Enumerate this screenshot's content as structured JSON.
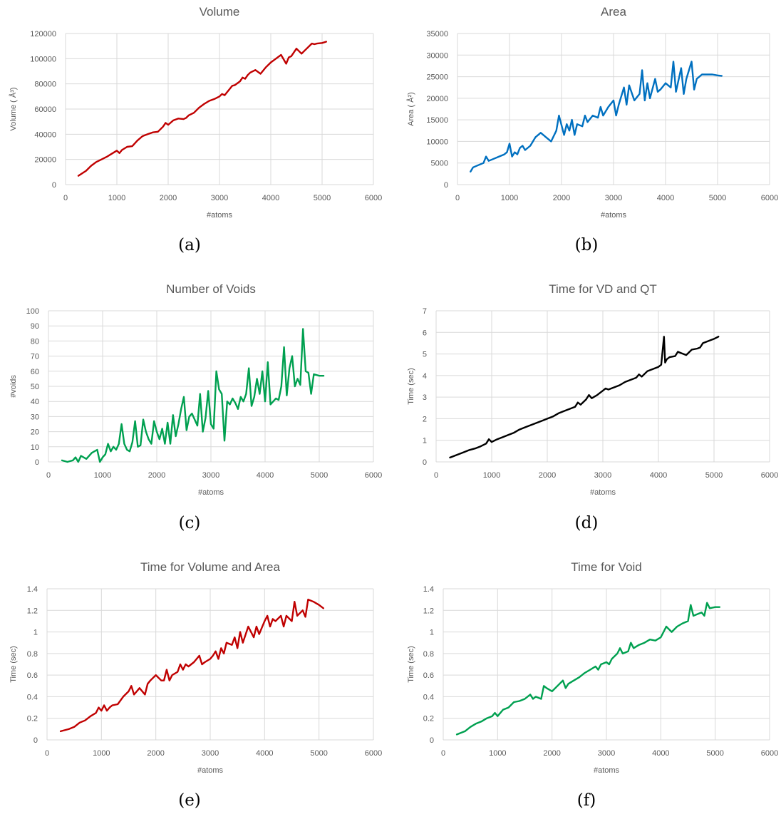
{
  "chart_data": [
    {
      "type": "line",
      "title": "Volume",
      "xlabel": "#atoms",
      "ylabel": "Volume ( Å³)",
      "caption": "(a)",
      "xlim": [
        0,
        6000
      ],
      "ylim": [
        0,
        120000
      ],
      "xticks": [
        "0",
        "1000",
        "2000",
        "3000",
        "4000",
        "5000",
        "6000"
      ],
      "yticks": [
        "0",
        "20000",
        "40000",
        "60000",
        "80000",
        "100000",
        "120000"
      ],
      "grid": true,
      "color": "#c00000",
      "series": [
        {
          "x": [
            250,
            400,
            500,
            600,
            700,
            800,
            900,
            1000,
            1050,
            1100,
            1200,
            1300,
            1400,
            1500,
            1600,
            1700,
            1800,
            1900,
            1950,
            2000,
            2100,
            2200,
            2300,
            2350,
            2400,
            2500,
            2550,
            2600,
            2700,
            2800,
            2900,
            3000,
            3050,
            3100,
            3200,
            3250,
            3300,
            3400,
            3450,
            3500,
            3550,
            3600,
            3700,
            3800,
            3900,
            4000,
            4100,
            4200,
            4300,
            4350,
            4400,
            4500,
            4600,
            4650,
            4700,
            4800,
            4850,
            4900,
            5000,
            5080
          ],
          "y": [
            7000,
            11000,
            15000,
            18000,
            20000,
            22000,
            24500,
            27000,
            25000,
            27500,
            30000,
            30500,
            35000,
            38500,
            40000,
            41500,
            42000,
            46000,
            49000,
            47500,
            51000,
            52500,
            52000,
            53000,
            55000,
            57000,
            59000,
            61000,
            64000,
            66500,
            68000,
            70000,
            72000,
            71000,
            76000,
            78500,
            79000,
            82000,
            85000,
            84000,
            87000,
            89000,
            91000,
            88000,
            93000,
            97000,
            100000,
            103000,
            96000,
            101000,
            102000,
            108000,
            104000,
            106000,
            108000,
            112000,
            111500,
            112000,
            112500,
            113500
          ]
        }
      ]
    },
    {
      "type": "line",
      "title": "Area",
      "xlabel": "#atoms",
      "ylabel": "Area ( Å²)",
      "caption": "(b)",
      "xlim": [
        0,
        6000
      ],
      "ylim": [
        0,
        35000
      ],
      "xticks": [
        "0",
        "1000",
        "2000",
        "3000",
        "4000",
        "5000",
        "6000"
      ],
      "yticks": [
        "0",
        "5000",
        "10000",
        "15000",
        "20000",
        "25000",
        "30000",
        "35000"
      ],
      "grid": true,
      "color": "#0070c0",
      "series": [
        {
          "x": [
            250,
            300,
            400,
            500,
            550,
            600,
            700,
            800,
            900,
            950,
            1000,
            1050,
            1100,
            1150,
            1200,
            1250,
            1300,
            1400,
            1500,
            1600,
            1700,
            1800,
            1900,
            1950,
            2050,
            2100,
            2150,
            2200,
            2250,
            2300,
            2400,
            2450,
            2500,
            2600,
            2700,
            2750,
            2800,
            2900,
            3000,
            3050,
            3100,
            3200,
            3250,
            3300,
            3400,
            3500,
            3550,
            3600,
            3650,
            3700,
            3800,
            3850,
            3900,
            4000,
            4100,
            4150,
            4200,
            4300,
            4350,
            4400,
            4500,
            4550,
            4600,
            4700,
            4800,
            4900,
            5000,
            5080
          ],
          "y": [
            3000,
            4000,
            4500,
            5000,
            6500,
            5500,
            6000,
            6500,
            7000,
            7500,
            9500,
            6500,
            7500,
            7000,
            8500,
            9000,
            8000,
            9000,
            11000,
            12000,
            11000,
            10000,
            12500,
            16000,
            11500,
            14000,
            12500,
            15000,
            11500,
            14000,
            13500,
            16000,
            14500,
            16000,
            15500,
            18000,
            16000,
            18000,
            19500,
            16000,
            18500,
            22500,
            18500,
            23000,
            19500,
            21000,
            26500,
            19500,
            23500,
            20000,
            24500,
            21500,
            22000,
            23500,
            22500,
            28500,
            21500,
            27000,
            21000,
            24500,
            28500,
            22000,
            24500,
            25500,
            25500,
            25500,
            25300,
            25200
          ]
        }
      ]
    },
    {
      "type": "line",
      "title": "Number of Voids",
      "xlabel": "#atoms",
      "ylabel": "#voids",
      "caption": "(c)",
      "xlim": [
        0,
        6000
      ],
      "ylim": [
        0,
        100
      ],
      "xticks": [
        "0",
        "1000",
        "2000",
        "3000",
        "4000",
        "5000",
        "6000"
      ],
      "yticks": [
        "0",
        "10",
        "20",
        "30",
        "40",
        "50",
        "60",
        "70",
        "80",
        "90",
        "100"
      ],
      "grid": true,
      "color": "#00a050",
      "series": [
        {
          "x": [
            250,
            350,
            450,
            500,
            550,
            600,
            700,
            800,
            900,
            950,
            1000,
            1050,
            1100,
            1150,
            1200,
            1250,
            1300,
            1350,
            1400,
            1450,
            1500,
            1550,
            1600,
            1650,
            1700,
            1750,
            1800,
            1850,
            1900,
            1950,
            2000,
            2050,
            2100,
            2150,
            2200,
            2250,
            2300,
            2350,
            2400,
            2450,
            2500,
            2550,
            2600,
            2650,
            2700,
            2750,
            2800,
            2850,
            2900,
            2950,
            3000,
            3050,
            3100,
            3150,
            3200,
            3250,
            3300,
            3350,
            3400,
            3450,
            3500,
            3550,
            3600,
            3650,
            3700,
            3750,
            3800,
            3850,
            3900,
            3950,
            4000,
            4050,
            4100,
            4150,
            4200,
            4250,
            4300,
            4350,
            4400,
            4450,
            4500,
            4550,
            4600,
            4650,
            4700,
            4750,
            4800,
            4850,
            4900,
            5000,
            5080
          ],
          "y": [
            1,
            0,
            1,
            3,
            0,
            4,
            2,
            6,
            8,
            0,
            3,
            5,
            12,
            7,
            10,
            8,
            12,
            25,
            12,
            8,
            7,
            13,
            27,
            10,
            11,
            28,
            20,
            15,
            12,
            27,
            20,
            15,
            22,
            12,
            26,
            12,
            31,
            17,
            25,
            35,
            43,
            21,
            30,
            32,
            28,
            24,
            45,
            20,
            29,
            47,
            25,
            22,
            60,
            48,
            45,
            14,
            40,
            38,
            42,
            39,
            35,
            43,
            40,
            45,
            62,
            37,
            43,
            55,
            45,
            60,
            40,
            66,
            38,
            40,
            42,
            41,
            50,
            76,
            44,
            62,
            70,
            50,
            55,
            51,
            88,
            60,
            59,
            45,
            58,
            57,
            57
          ]
        }
      ]
    },
    {
      "type": "line",
      "title": "Time for VD and QT",
      "xlabel": "#atoms",
      "ylabel": "Time (sec)",
      "caption": "(d)",
      "xlim": [
        0,
        6000
      ],
      "ylim": [
        0,
        7
      ],
      "xticks": [
        "0",
        "1000",
        "2000",
        "3000",
        "4000",
        "5000",
        "6000"
      ],
      "yticks": [
        "0",
        "1",
        "2",
        "3",
        "4",
        "5",
        "6",
        "7"
      ],
      "grid": true,
      "color": "#000000",
      "series": [
        {
          "x": [
            250,
            400,
            500,
            600,
            700,
            800,
            900,
            950,
            1000,
            1100,
            1200,
            1300,
            1400,
            1500,
            1600,
            1700,
            1800,
            1900,
            2000,
            2100,
            2200,
            2300,
            2400,
            2500,
            2550,
            2600,
            2700,
            2750,
            2800,
            2900,
            3000,
            3050,
            3100,
            3200,
            3300,
            3400,
            3500,
            3600,
            3650,
            3700,
            3800,
            3900,
            4000,
            4050,
            4100,
            4120,
            4150,
            4200,
            4300,
            4350,
            4400,
            4450,
            4500,
            4600,
            4700,
            4750,
            4800,
            4900,
            5000,
            5080
          ],
          "y": [
            0.2,
            0.35,
            0.45,
            0.55,
            0.62,
            0.72,
            0.85,
            1.05,
            0.92,
            1.05,
            1.15,
            1.25,
            1.35,
            1.5,
            1.6,
            1.7,
            1.8,
            1.9,
            2.0,
            2.1,
            2.25,
            2.35,
            2.45,
            2.55,
            2.75,
            2.65,
            2.9,
            3.1,
            2.95,
            3.1,
            3.3,
            3.4,
            3.35,
            3.45,
            3.55,
            3.7,
            3.8,
            3.9,
            4.05,
            3.95,
            4.2,
            4.3,
            4.4,
            4.5,
            5.8,
            4.6,
            4.75,
            4.85,
            4.9,
            5.1,
            5.05,
            5.0,
            4.95,
            5.2,
            5.25,
            5.3,
            5.5,
            5.6,
            5.7,
            5.8
          ]
        }
      ]
    },
    {
      "type": "line",
      "title": "Time for Volume and Area",
      "xlabel": "#atoms",
      "ylabel": "Time (sec)",
      "caption": "(e)",
      "xlim": [
        0,
        6000
      ],
      "ylim": [
        0,
        1.4
      ],
      "xticks": [
        "0",
        "1000",
        "2000",
        "3000",
        "4000",
        "5000",
        "6000"
      ],
      "yticks": [
        "0",
        "0.2",
        "0.4",
        "0.6",
        "0.8",
        "1",
        "1.2",
        "1.4"
      ],
      "grid": true,
      "color": "#c00000",
      "series": [
        {
          "x": [
            250,
            400,
            500,
            600,
            700,
            800,
            900,
            950,
            1000,
            1050,
            1100,
            1150,
            1200,
            1300,
            1400,
            1500,
            1550,
            1600,
            1650,
            1700,
            1800,
            1850,
            1900,
            2000,
            2100,
            2150,
            2200,
            2250,
            2300,
            2400,
            2450,
            2500,
            2550,
            2600,
            2700,
            2800,
            2850,
            2900,
            3000,
            3050,
            3100,
            3150,
            3200,
            3250,
            3300,
            3400,
            3450,
            3500,
            3550,
            3600,
            3700,
            3800,
            3850,
            3900,
            4000,
            4050,
            4100,
            4150,
            4200,
            4300,
            4350,
            4400,
            4500,
            4550,
            4600,
            4700,
            4750,
            4800,
            4900,
            5000,
            5080
          ],
          "y": [
            0.08,
            0.1,
            0.12,
            0.16,
            0.18,
            0.22,
            0.25,
            0.3,
            0.27,
            0.32,
            0.27,
            0.3,
            0.32,
            0.33,
            0.4,
            0.45,
            0.5,
            0.42,
            0.45,
            0.48,
            0.42,
            0.52,
            0.55,
            0.6,
            0.55,
            0.55,
            0.65,
            0.55,
            0.6,
            0.63,
            0.7,
            0.65,
            0.7,
            0.68,
            0.72,
            0.78,
            0.7,
            0.72,
            0.75,
            0.78,
            0.82,
            0.75,
            0.85,
            0.8,
            0.9,
            0.88,
            0.95,
            0.85,
            1.0,
            0.9,
            1.05,
            0.95,
            1.05,
            0.98,
            1.1,
            1.15,
            1.05,
            1.12,
            1.1,
            1.15,
            1.05,
            1.15,
            1.1,
            1.28,
            1.15,
            1.2,
            1.14,
            1.3,
            1.28,
            1.25,
            1.22
          ]
        }
      ]
    },
    {
      "type": "line",
      "title": "Time for Void",
      "xlabel": "#atoms",
      "ylabel": "Time (sec)",
      "caption": "(f)",
      "xlim": [
        0,
        6000
      ],
      "ylim": [
        0,
        1.4
      ],
      "xticks": [
        "0",
        "1000",
        "2000",
        "3000",
        "4000",
        "5000",
        "6000"
      ],
      "yticks": [
        "0",
        "0.2",
        "0.4",
        "0.6",
        "0.8",
        "1",
        "1.2",
        "1.4"
      ],
      "grid": true,
      "color": "#00a050",
      "series": [
        {
          "x": [
            250,
            400,
            500,
            600,
            700,
            800,
            900,
            950,
            1000,
            1100,
            1200,
            1300,
            1400,
            1500,
            1600,
            1650,
            1700,
            1800,
            1850,
            1900,
            2000,
            2100,
            2200,
            2250,
            2300,
            2400,
            2500,
            2600,
            2700,
            2800,
            2850,
            2900,
            3000,
            3050,
            3100,
            3200,
            3250,
            3300,
            3400,
            3450,
            3500,
            3600,
            3700,
            3800,
            3900,
            4000,
            4050,
            4100,
            4200,
            4300,
            4400,
            4500,
            4550,
            4600,
            4700,
            4750,
            4800,
            4850,
            4900,
            5000,
            5080
          ],
          "y": [
            0.05,
            0.08,
            0.12,
            0.15,
            0.17,
            0.2,
            0.22,
            0.25,
            0.22,
            0.28,
            0.3,
            0.35,
            0.36,
            0.38,
            0.42,
            0.38,
            0.4,
            0.38,
            0.5,
            0.48,
            0.45,
            0.5,
            0.55,
            0.48,
            0.52,
            0.55,
            0.58,
            0.62,
            0.65,
            0.68,
            0.65,
            0.7,
            0.72,
            0.7,
            0.75,
            0.8,
            0.85,
            0.8,
            0.82,
            0.9,
            0.85,
            0.88,
            0.9,
            0.93,
            0.92,
            0.95,
            1.0,
            1.05,
            1.0,
            1.05,
            1.08,
            1.1,
            1.25,
            1.15,
            1.17,
            1.18,
            1.15,
            1.27,
            1.22,
            1.23,
            1.23
          ]
        }
      ]
    }
  ]
}
